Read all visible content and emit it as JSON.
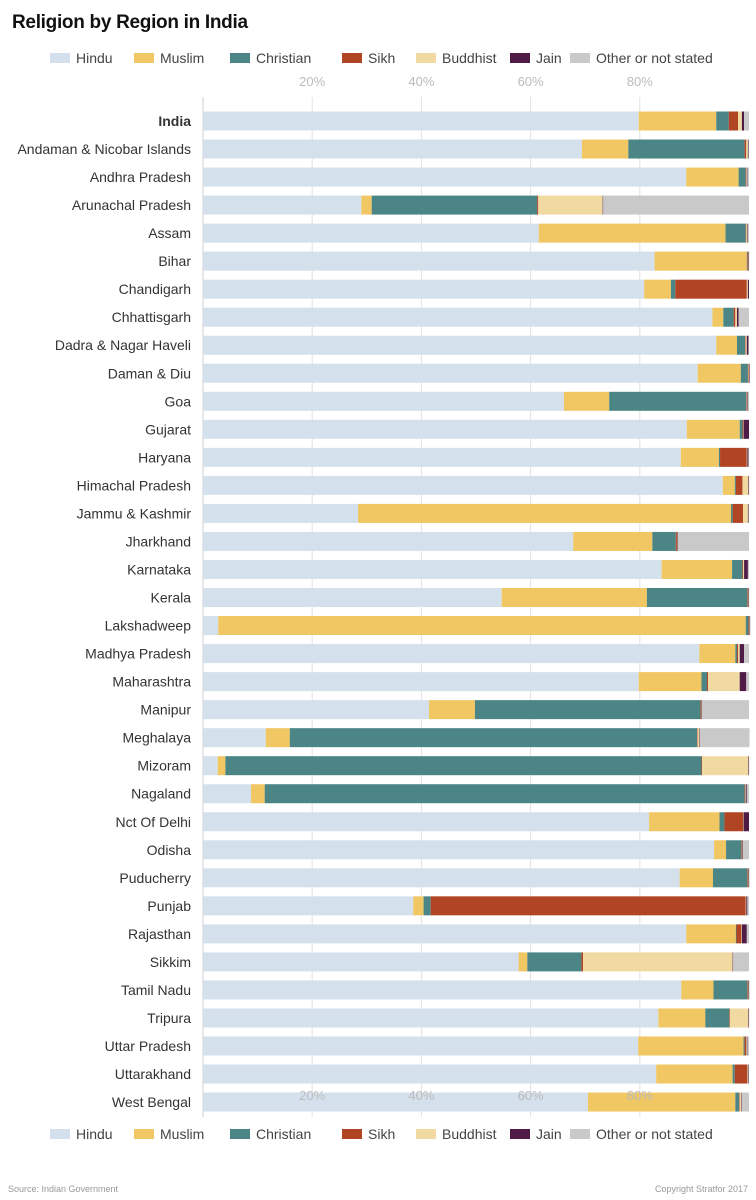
{
  "title": "Religion by Region in India",
  "source": "Source: Indian Government",
  "copyright": "Copyright Stratfor 2017",
  "chart_data": {
    "type": "bar",
    "orientation": "horizontal",
    "stacked": true,
    "title": "Religion by Region in India",
    "xlim": [
      0,
      100
    ],
    "x_ticks": [
      "20%",
      "40%",
      "60%",
      "80%"
    ],
    "x_tick_values": [
      20,
      40,
      60,
      80
    ],
    "grid": true,
    "legend_position": "top and bottom",
    "categories": [
      "India",
      "Andaman & Nicobar Islands",
      "Andhra Pradesh",
      "Arunachal Pradesh",
      "Assam",
      "Bihar",
      "Chandigarh",
      "Chhattisgarh",
      "Dadra & Nagar Haveli",
      "Daman & Diu",
      "Goa",
      "Gujarat",
      "Haryana",
      "Himachal Pradesh",
      "Jammu & Kashmir",
      "Jharkhand",
      "Karnataka",
      "Kerala",
      "Lakshadweep",
      "Madhya Pradesh",
      "Maharashtra",
      "Manipur",
      "Meghalaya",
      "Mizoram",
      "Nagaland",
      "Nct Of Delhi",
      "Odisha",
      "Puducherry",
      "Punjab",
      "Rajasthan",
      "Sikkim",
      "Tamil Nadu",
      "Tripura",
      "Uttar Pradesh",
      "Uttarakhand",
      "West Bengal"
    ],
    "highlight_category": "India",
    "series": [
      {
        "name": "Hindu",
        "color": "#d4e1ed",
        "values": [
          79.8,
          69.4,
          88.5,
          29.0,
          61.5,
          82.7,
          80.8,
          93.3,
          94.0,
          90.6,
          66.1,
          88.6,
          87.5,
          95.2,
          28.4,
          67.8,
          84.0,
          54.7,
          2.8,
          90.9,
          79.8,
          41.4,
          11.5,
          2.7,
          8.8,
          81.7,
          93.6,
          87.3,
          38.5,
          88.5,
          57.8,
          87.6,
          83.4,
          79.7,
          83.0,
          70.5
        ]
      },
      {
        "name": "Muslim",
        "color": "#f0c763",
        "values": [
          14.2,
          8.5,
          9.6,
          1.9,
          34.2,
          16.9,
          4.9,
          2.0,
          3.8,
          7.9,
          8.3,
          9.7,
          7.0,
          2.2,
          68.3,
          14.5,
          12.9,
          26.6,
          96.6,
          6.6,
          11.5,
          8.4,
          4.4,
          1.4,
          2.5,
          12.9,
          2.2,
          6.1,
          1.9,
          9.1,
          1.6,
          5.9,
          8.6,
          19.3,
          14.0,
          27.0
        ]
      },
      {
        "name": "Christian",
        "color": "#4b8585",
        "values": [
          2.3,
          21.3,
          1.3,
          30.3,
          3.7,
          0.1,
          0.8,
          1.9,
          1.5,
          1.3,
          25.1,
          0.5,
          0.2,
          0.2,
          0.3,
          4.3,
          1.9,
          18.4,
          0.5,
          0.3,
          1.0,
          41.3,
          74.6,
          87.2,
          87.9,
          0.9,
          2.8,
          6.3,
          1.3,
          0.1,
          9.9,
          6.2,
          4.4,
          0.2,
          0.4,
          0.7
        ]
      },
      {
        "name": "Sikh",
        "color": "#b14423",
        "values": [
          1.7,
          0.3,
          0.1,
          0.2,
          0.1,
          0.1,
          13.1,
          0.3,
          0.1,
          0.1,
          0.1,
          0.1,
          4.9,
          1.2,
          1.9,
          0.2,
          0.1,
          0.1,
          0.1,
          0.2,
          0.2,
          0.1,
          0.1,
          0.1,
          0.1,
          3.4,
          0.1,
          0.1,
          57.7,
          0.9,
          0.3,
          0.1,
          0.1,
          0.3,
          2.3,
          0.1
        ]
      },
      {
        "name": "Buddhist",
        "color": "#f1d9a2",
        "values": [
          0.7,
          0.3,
          0.1,
          11.8,
          0.2,
          0.1,
          0.2,
          0.3,
          0.2,
          0.1,
          0.1,
          0.1,
          0.1,
          1.1,
          0.9,
          0.1,
          0.2,
          0.1,
          0.1,
          0.3,
          5.8,
          0.1,
          0.3,
          8.5,
          0.1,
          0.1,
          0.1,
          0.1,
          0.1,
          0.1,
          27.4,
          0.1,
          3.4,
          0.1,
          0.1,
          0.3
        ]
      },
      {
        "name": "Jain",
        "color": "#4e1c46",
        "values": [
          0.4,
          0.1,
          0.1,
          0.1,
          0.1,
          0.1,
          0.2,
          0.3,
          0.3,
          0.1,
          0.1,
          1.0,
          0.2,
          0.1,
          0.1,
          0.1,
          0.7,
          0.1,
          0.1,
          0.8,
          1.2,
          0.1,
          0.1,
          0.1,
          0.2,
          1.0,
          0.1,
          0.1,
          0.2,
          0.9,
          0.1,
          0.1,
          0.1,
          0.1,
          0.1,
          0.1
        ]
      },
      {
        "name": "Other or not stated",
        "color": "#c9c9c9",
        "values": [
          0.9,
          0.1,
          0.3,
          26.7,
          0.2,
          0.0,
          0.0,
          1.9,
          0.1,
          0.0,
          0.2,
          0.0,
          0.1,
          0.0,
          0.1,
          13.0,
          0.2,
          0.0,
          0.0,
          0.9,
          0.5,
          8.6,
          9.1,
          0.0,
          0.4,
          0.0,
          1.1,
          0.1,
          0.3,
          0.4,
          2.9,
          0.1,
          0.0,
          0.3,
          0.1,
          1.3
        ]
      }
    ]
  }
}
